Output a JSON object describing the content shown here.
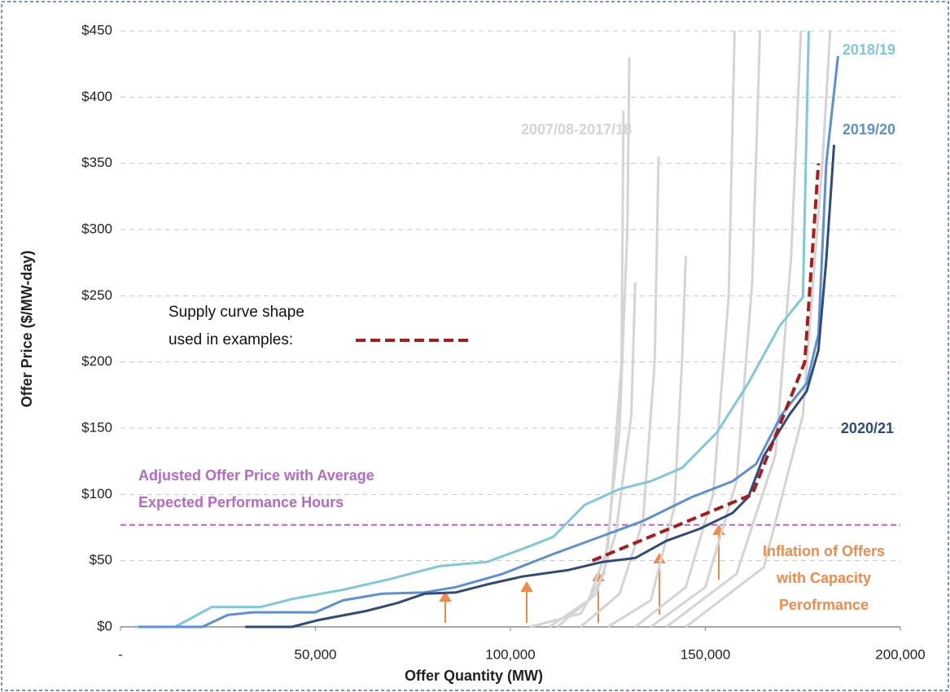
{
  "chart_data": {
    "type": "line",
    "xlabel": "Offer Quantity (MW)",
    "ylabel": "Offer Price ($/MW-day)",
    "xlim": [
      0,
      200000
    ],
    "ylim": [
      0,
      450
    ],
    "xticks": [
      {
        "value": 0,
        "label": "-"
      },
      {
        "value": 50000,
        "label": "50,000"
      },
      {
        "value": 100000,
        "label": "100,000"
      },
      {
        "value": 150000,
        "label": "150,000"
      },
      {
        "value": 200000,
        "label": "200,000"
      }
    ],
    "yticks": [
      {
        "value": 0,
        "label": "$0"
      },
      {
        "value": 50,
        "label": "$50"
      },
      {
        "value": 100,
        "label": "$100"
      },
      {
        "value": 150,
        "label": "$150"
      },
      {
        "value": 200,
        "label": "$200"
      },
      {
        "value": 250,
        "label": "$250"
      },
      {
        "value": 300,
        "label": "$300"
      },
      {
        "value": 350,
        "label": "$350"
      },
      {
        "value": 400,
        "label": "$400"
      },
      {
        "value": 450,
        "label": "$450"
      }
    ],
    "grid": true,
    "series": [
      {
        "name": "2007/08-2017/18",
        "color": "#d4d4d4",
        "x": [
          105000,
          118000,
          124000,
          128000,
          130000,
          130500,
          null,
          110000,
          120000,
          125000,
          128500,
          129000,
          null,
          112000,
          122000,
          127000,
          131000,
          132000,
          null,
          118000,
          128000,
          134000,
          137000,
          138000,
          null,
          125000,
          136000,
          142000,
          144000,
          145000,
          null,
          132000,
          145000,
          152000,
          156000,
          157500,
          null,
          136000,
          150000,
          158000,
          162000,
          164000,
          null,
          140000,
          158000,
          168000,
          172000,
          174500,
          null,
          145000,
          165000,
          175000,
          180000,
          182000
        ],
        "values": [
          0,
          10,
          40,
          150,
          300,
          430,
          null,
          0,
          20,
          60,
          200,
          390,
          null,
          0,
          25,
          70,
          160,
          260,
          null,
          0,
          25,
          80,
          200,
          355,
          null,
          0,
          20,
          90,
          200,
          280,
          null,
          0,
          30,
          100,
          250,
          450,
          null,
          0,
          30,
          110,
          260,
          450,
          null,
          0,
          40,
          130,
          280,
          450,
          null,
          0,
          45,
          160,
          350,
          450
        ]
      },
      {
        "name": "2018/19",
        "color": "#7fc8da",
        "x": [
          3500,
          14000,
          23400,
          36000,
          44000,
          57000,
          69000,
          82000,
          94000,
          105000,
          111000,
          119000,
          128000,
          136000,
          144000,
          153000,
          161000,
          169000,
          175000,
          176500
        ],
        "values": [
          0,
          0,
          15,
          15,
          21,
          28,
          36,
          46,
          49,
          61,
          68,
          92,
          104,
          110,
          120,
          147,
          184,
          227,
          249,
          450
        ]
      },
      {
        "name": "2019/20",
        "color": "#5b8fd6",
        "x": [
          4600,
          21000,
          27500,
          34000,
          50000,
          57000,
          67000,
          78000,
          86000,
          98000,
          111000,
          123000,
          134000,
          146500,
          157000,
          163000,
          169500,
          176000,
          179000,
          181000,
          184000
        ],
        "values": [
          0,
          0,
          9,
          11,
          11,
          20,
          25,
          26,
          30,
          40,
          55,
          68,
          80,
          98,
          110,
          123,
          160,
          184,
          221,
          350,
          431
        ]
      },
      {
        "name": "2020/21",
        "color": "#2f4b7c",
        "x": [
          32000,
          44000,
          50500,
          63000,
          71000,
          78000,
          86000,
          94000,
          103000,
          115000,
          123500,
          132000,
          140000,
          148500,
          157000,
          161000,
          165000,
          171500,
          176000,
          179000,
          181000,
          183000
        ],
        "values": [
          0,
          0,
          5,
          12,
          18,
          25,
          26,
          32,
          38,
          43,
          49,
          52,
          65,
          74,
          86,
          98,
          129,
          160,
          178,
          209,
          277,
          364
        ]
      },
      {
        "color": "#a81c1c",
        "dashed": true,
        "x": [
          121000,
          162000,
          175500,
          179000
        ],
        "values": [
          50,
          100,
          200,
          350
        ]
      }
    ],
    "reference_line": {
      "value": 77,
      "color": "#b469c9",
      "label": [
        "Adjusted Offer Price with Average",
        "Expected Performance Hours"
      ]
    },
    "supply_note": [
      "Supply curve shape",
      "used in examples:"
    ],
    "inflation_note": [
      "Inflation of Offers",
      "with Capacity",
      "Perofrmance"
    ]
  }
}
